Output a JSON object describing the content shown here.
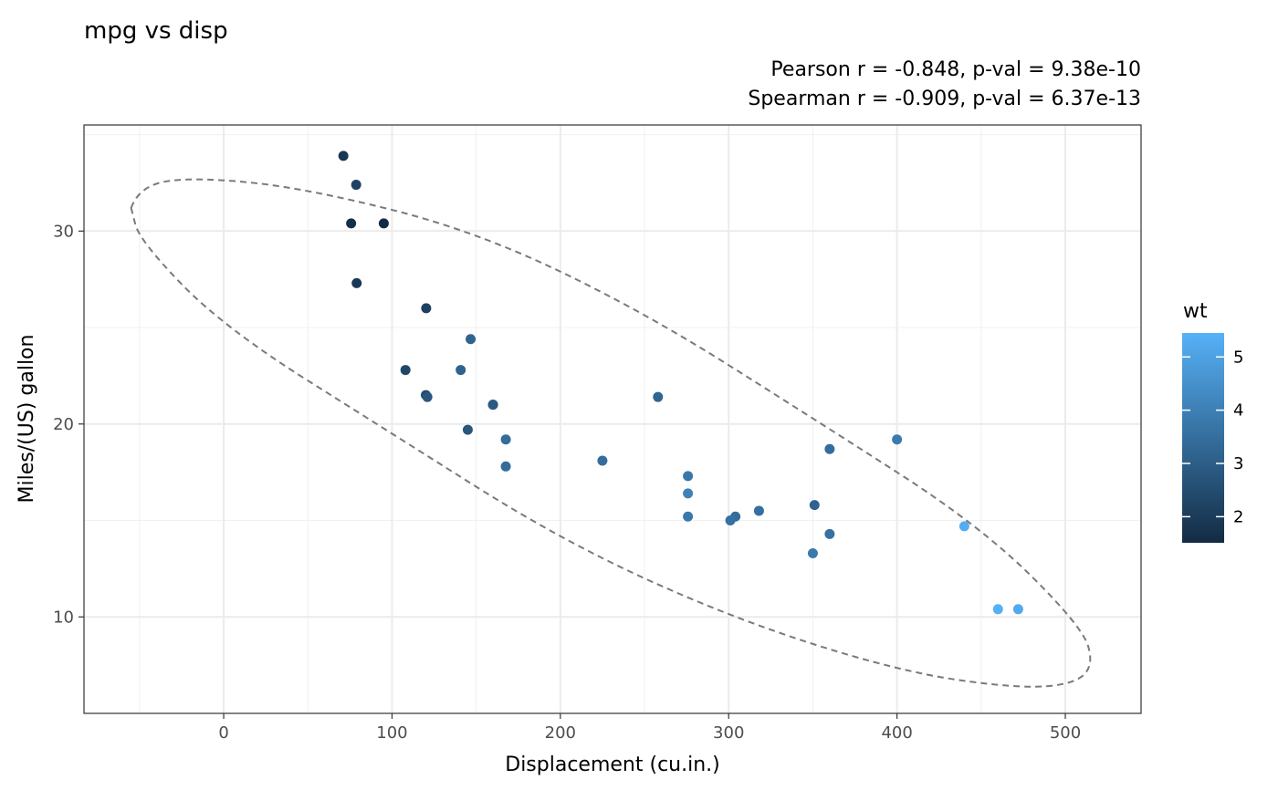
{
  "chart_data": {
    "type": "scatter",
    "title": "mpg vs disp",
    "subtitle": [
      "Pearson r = -0.848, p-val = 9.38e-10",
      "Spearman r = -0.909, p-val = 6.37e-13"
    ],
    "xlabel": "Displacement (cu.in.)",
    "ylabel": "Miles/(US) gallon",
    "xlim": [
      -83,
      545
    ],
    "ylim": [
      5,
      35.5
    ],
    "x_ticks": [
      0,
      100,
      200,
      300,
      400,
      500
    ],
    "y_ticks": [
      10,
      20,
      30
    ],
    "grid": true,
    "color_by": "wt",
    "legend": {
      "title": "wt",
      "position": "right",
      "range": [
        1.51,
        5.45
      ],
      "ticks": [
        2,
        3,
        4,
        5
      ],
      "color_low": "#132B43",
      "color_high": "#56B1F7"
    },
    "ellipse": {
      "style": "dashed",
      "color": "#7a7a7a",
      "center": [
        230.7,
        20.1
      ],
      "path": [
        [
          -55,
          31.2
        ],
        [
          -50,
          32.4
        ],
        [
          -15,
          32.8
        ],
        [
          50,
          32.2
        ],
        [
          150,
          30.0
        ],
        [
          250,
          25.8
        ],
        [
          350,
          20.3
        ],
        [
          450,
          14.7
        ],
        [
          510,
          9.5
        ],
        [
          517,
          7.5
        ],
        [
          505,
          6.5
        ],
        [
          470,
          6.3
        ],
        [
          400,
          7.2
        ],
        [
          300,
          10.0
        ],
        [
          200,
          14.0
        ],
        [
          100,
          19.5
        ],
        [
          0,
          25.0
        ],
        [
          -50,
          29.5
        ],
        [
          -55,
          31.2
        ]
      ]
    },
    "points": [
      {
        "x": 160,
        "y": 21.0,
        "wt": 2.62
      },
      {
        "x": 160,
        "y": 21.0,
        "wt": 2.875
      },
      {
        "x": 108,
        "y": 22.8,
        "wt": 2.32
      },
      {
        "x": 258,
        "y": 21.4,
        "wt": 3.215
      },
      {
        "x": 360,
        "y": 18.7,
        "wt": 3.44
      },
      {
        "x": 225,
        "y": 18.1,
        "wt": 3.46
      },
      {
        "x": 360,
        "y": 14.3,
        "wt": 3.57
      },
      {
        "x": 146.7,
        "y": 24.4,
        "wt": 3.19
      },
      {
        "x": 140.8,
        "y": 22.8,
        "wt": 3.15
      },
      {
        "x": 167.6,
        "y": 19.2,
        "wt": 3.44
      },
      {
        "x": 167.6,
        "y": 17.8,
        "wt": 3.44
      },
      {
        "x": 275.8,
        "y": 16.4,
        "wt": 4.07
      },
      {
        "x": 275.8,
        "y": 17.3,
        "wt": 3.73
      },
      {
        "x": 275.8,
        "y": 15.2,
        "wt": 3.78
      },
      {
        "x": 472,
        "y": 10.4,
        "wt": 5.25
      },
      {
        "x": 460,
        "y": 10.4,
        "wt": 5.424
      },
      {
        "x": 440,
        "y": 14.7,
        "wt": 5.345
      },
      {
        "x": 78.7,
        "y": 32.4,
        "wt": 2.2
      },
      {
        "x": 75.7,
        "y": 30.4,
        "wt": 1.615
      },
      {
        "x": 71.1,
        "y": 33.9,
        "wt": 1.835
      },
      {
        "x": 120.1,
        "y": 21.5,
        "wt": 2.465
      },
      {
        "x": 318,
        "y": 15.5,
        "wt": 3.52
      },
      {
        "x": 304,
        "y": 15.2,
        "wt": 3.435
      },
      {
        "x": 350,
        "y": 13.3,
        "wt": 3.84
      },
      {
        "x": 400,
        "y": 19.2,
        "wt": 3.845
      },
      {
        "x": 79,
        "y": 27.3,
        "wt": 1.935
      },
      {
        "x": 120.3,
        "y": 26.0,
        "wt": 2.14
      },
      {
        "x": 95.1,
        "y": 30.4,
        "wt": 1.513
      },
      {
        "x": 351,
        "y": 15.8,
        "wt": 3.17
      },
      {
        "x": 145,
        "y": 19.7,
        "wt": 2.77
      },
      {
        "x": 301,
        "y": 15.0,
        "wt": 3.57
      },
      {
        "x": 121,
        "y": 21.4,
        "wt": 2.78
      }
    ]
  }
}
